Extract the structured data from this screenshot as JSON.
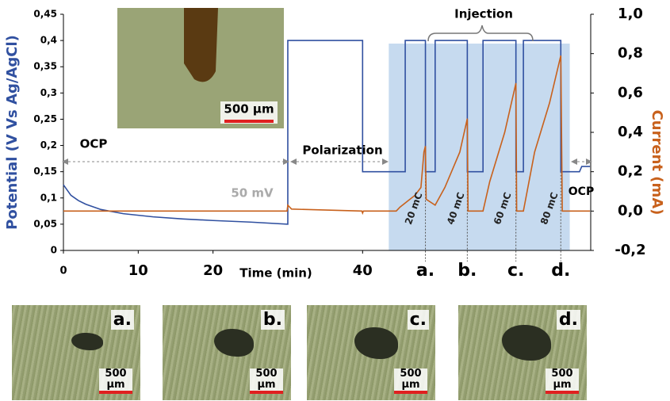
{
  "chart_data": {
    "type": "line",
    "xlabel": "Time (min)",
    "ylabel": "Potential (V Vs Ag/AgCl)",
    "y2label": "Current (mA)",
    "xlim": [
      0,
      70.5
    ],
    "xticks": [
      0,
      10,
      20,
      40,
      {
        "value": 48.4,
        "label": "a."
      },
      {
        "value": 54.0,
        "label": "b."
      },
      {
        "value": 60.5,
        "label": "c."
      },
      {
        "value": 66.5,
        "label": "d."
      }
    ],
    "ylim": [
      0,
      0.45
    ],
    "yticks": [
      0,
      {
        "value": 0.05,
        "label": "0,05"
      },
      {
        "value": 0.1,
        "label": "0,1"
      },
      {
        "value": 0.15,
        "label": "0,15"
      },
      {
        "value": 0.2,
        "label": "0,2"
      },
      {
        "value": 0.25,
        "label": "0,25"
      },
      {
        "value": 0.3,
        "label": "0,3"
      },
      {
        "value": 0.35,
        "label": "0,35"
      },
      {
        "value": 0.4,
        "label": "0,4"
      },
      {
        "value": 0.45,
        "label": "0,45"
      }
    ],
    "y2lim": [
      -0.2,
      1.0
    ],
    "y2ticks": [
      {
        "value": -0.2,
        "label": "-0,2"
      },
      {
        "value": 0,
        "label": "0,0"
      },
      {
        "value": 0.2,
        "label": "0,2"
      },
      {
        "value": 0.4,
        "label": "0,4"
      },
      {
        "value": 0.6,
        "label": "0,6"
      },
      {
        "value": 0.8,
        "label": "0,8"
      },
      {
        "value": 1.0,
        "label": "1,0"
      }
    ],
    "shaded_span": [
      43.5,
      67.7
    ],
    "series": [
      {
        "color": "#3050a0",
        "x": [
          0,
          1,
          2,
          3,
          5,
          8,
          12,
          16,
          20,
          25,
          30,
          30,
          40,
          40,
          45.7,
          45.7,
          48.4,
          48.4,
          49.7,
          49.7,
          54.0,
          54.0,
          56.1,
          56.1,
          60.5,
          60.5,
          61.5,
          61.5,
          66.5,
          66.5,
          69,
          69.3,
          70.4
        ],
        "values": [
          0.125,
          0.105,
          0.095,
          0.088,
          0.078,
          0.07,
          0.064,
          0.06,
          0.057,
          0.054,
          0.05,
          0.4,
          0.4,
          0.15,
          0.15,
          0.4,
          0.4,
          0.15,
          0.15,
          0.4,
          0.4,
          0.15,
          0.15,
          0.4,
          0.4,
          0.15,
          0.15,
          0.4,
          0.4,
          0.15,
          0.15,
          0.16,
          0.16
        ]
      },
      {
        "color": "#c8611c",
        "axis": "y2",
        "x": [
          0,
          29.9,
          30,
          30.5,
          39.9,
          40,
          40.1,
          44.5,
          45,
          46,
          47,
          47.8,
          48.2,
          48.4,
          48.5,
          49.7,
          51,
          53,
          54.0,
          54.1,
          56.1,
          57,
          59,
          60.5,
          60.6,
          61.5,
          63,
          65,
          66.5,
          66.7,
          70.4
        ],
        "values": [
          0,
          0,
          0.03,
          0.01,
          0,
          -0.01,
          0,
          0,
          0.02,
          0.05,
          0.08,
          0.12,
          0.3,
          0.33,
          0.06,
          0.03,
          0.12,
          0.3,
          0.47,
          0,
          0,
          0.15,
          0.4,
          0.65,
          0,
          0,
          0.3,
          0.55,
          0.79,
          0,
          0
        ]
      }
    ],
    "annotations": [
      "OCP",
      "Polarization",
      "Injection",
      "50 mV",
      "20 mC",
      "40 mC",
      "60 mC",
      "80 mC",
      "OCP"
    ]
  },
  "inset_photo": {
    "scale": "500 µm"
  },
  "photos": [
    {
      "label": "a.",
      "scale": "500 µm"
    },
    {
      "label": "b.",
      "scale": "500 µm"
    },
    {
      "label": "c.",
      "scale": "500 µm"
    },
    {
      "label": "d.",
      "scale": "500 µm"
    }
  ]
}
